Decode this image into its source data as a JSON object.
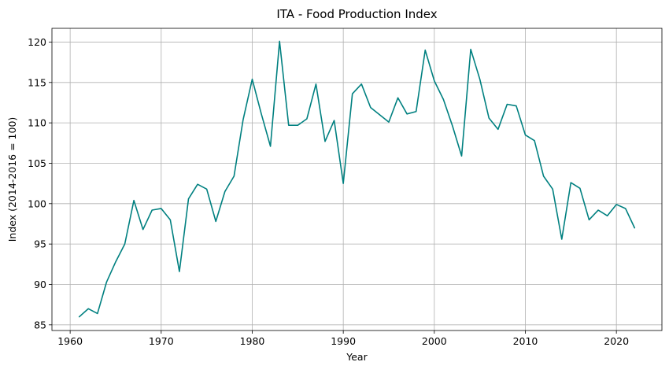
{
  "chart_data": {
    "type": "line",
    "title": "ITA - Food Production Index",
    "xlabel": "Year",
    "ylabel": "Index (2014-2016 = 100)",
    "xlim": [
      1958,
      2025
    ],
    "ylim": [
      84.3,
      121.7
    ],
    "xticks": [
      1960,
      1970,
      1980,
      1990,
      2000,
      2010,
      2020
    ],
    "yticks": [
      85,
      90,
      95,
      100,
      105,
      110,
      115,
      120
    ],
    "grid": true,
    "series": [
      {
        "color": "#008080",
        "x": [
          1961,
          1962,
          1963,
          1964,
          1965,
          1966,
          1967,
          1968,
          1969,
          1970,
          1971,
          1972,
          1973,
          1974,
          1975,
          1976,
          1977,
          1978,
          1979,
          1980,
          1981,
          1982,
          1983,
          1984,
          1985,
          1986,
          1987,
          1988,
          1989,
          1990,
          1991,
          1992,
          1993,
          1994,
          1995,
          1996,
          1997,
          1998,
          1999,
          2000,
          2001,
          2002,
          2003,
          2004,
          2005,
          2006,
          2007,
          2008,
          2009,
          2010,
          2011,
          2012,
          2013,
          2014,
          2015,
          2016,
          2017,
          2018,
          2019,
          2020,
          2021,
          2022
        ],
        "values": [
          86.0,
          87.0,
          86.4,
          90.3,
          92.8,
          95.0,
          100.4,
          96.8,
          99.2,
          99.4,
          98.0,
          91.6,
          100.6,
          102.4,
          101.8,
          97.8,
          101.5,
          103.4,
          110.4,
          115.4,
          111.1,
          107.1,
          120.1,
          109.7,
          109.7,
          110.5,
          114.8,
          107.7,
          110.3,
          102.5,
          113.6,
          114.8,
          111.9,
          111.0,
          110.1,
          113.1,
          111.1,
          111.4,
          119.0,
          115.2,
          112.9,
          109.6,
          105.9,
          119.1,
          115.4,
          110.6,
          109.2,
          112.3,
          112.1,
          108.5,
          107.8,
          103.4,
          101.8,
          95.6,
          102.6,
          101.9,
          98.0,
          99.2,
          98.5,
          99.9,
          99.4,
          97.0
        ]
      }
    ]
  }
}
